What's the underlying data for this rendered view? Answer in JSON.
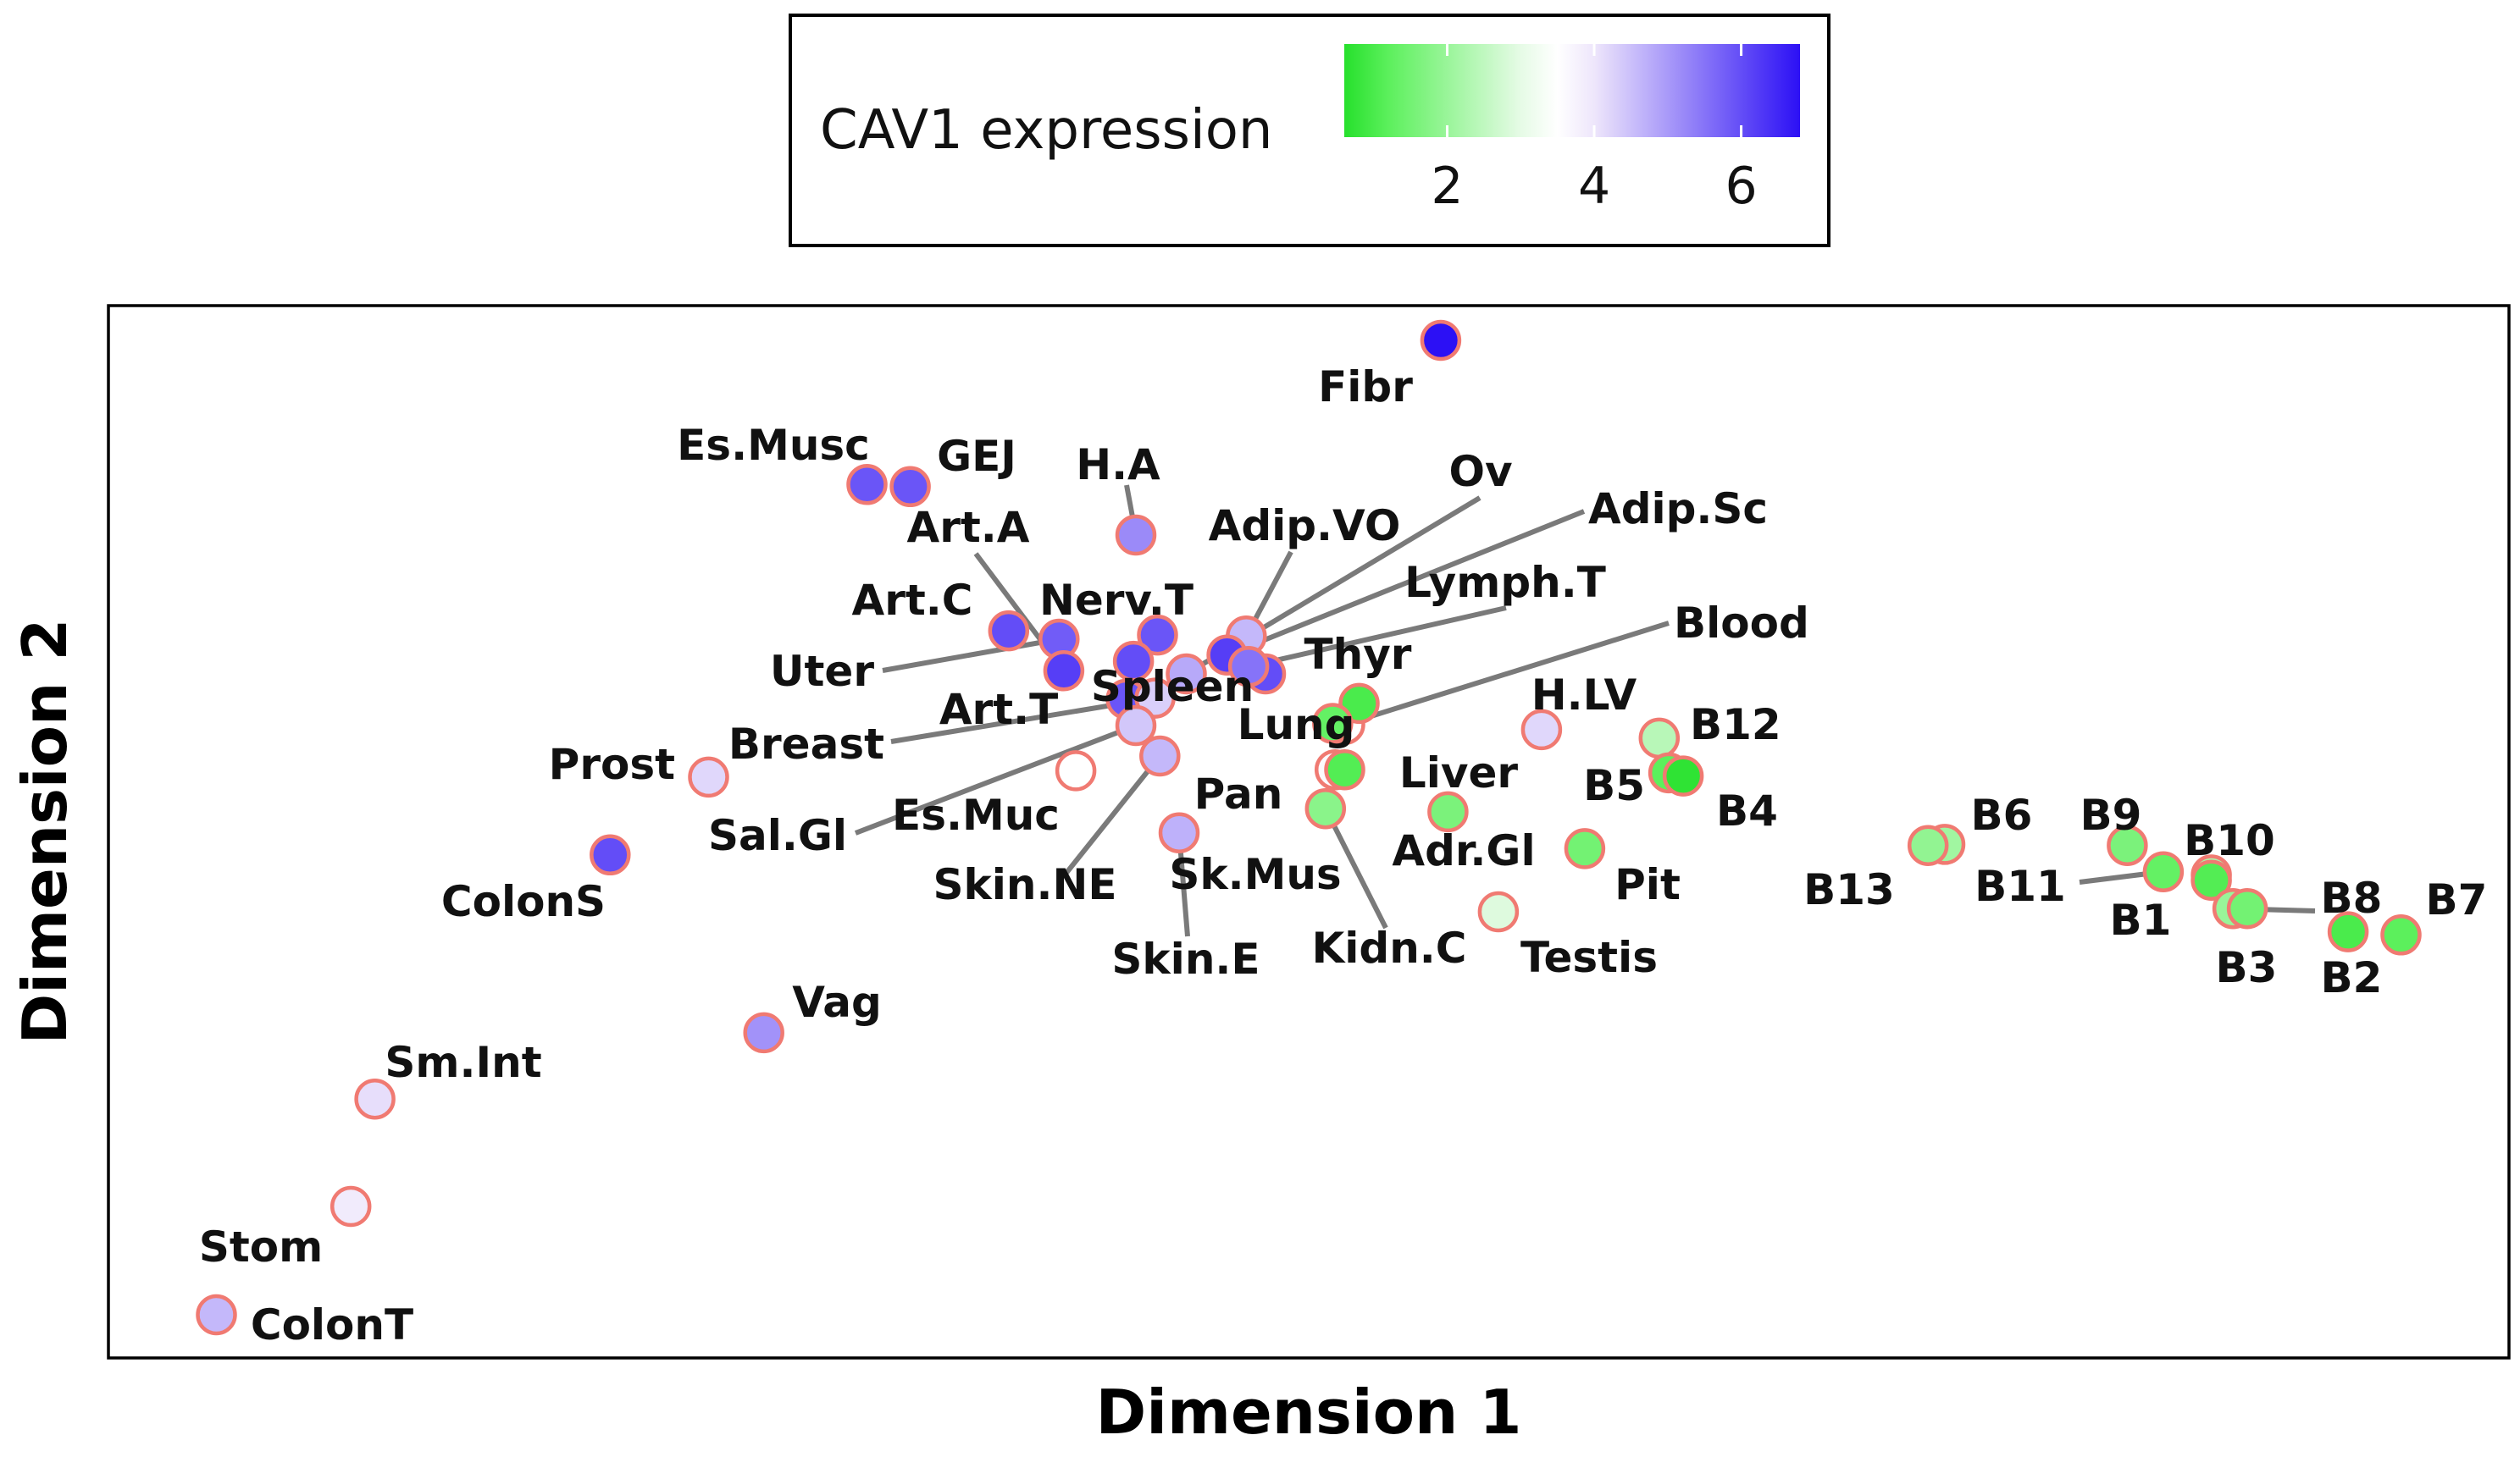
{
  "chart_data": {
    "type": "scatter",
    "title": "",
    "xlabel": "Dimension 1",
    "ylabel": "Dimension 2",
    "xlim": [
      0,
      100
    ],
    "ylim": [
      0,
      100
    ],
    "grid": false,
    "color_variable": "CAV1 expression",
    "color_scale": {
      "min": 0.6,
      "max": 6.8,
      "stops": [
        {
          "value": 0.6,
          "color": "#26e02c"
        },
        {
          "value": 1.2,
          "color": "#5cf05c"
        },
        {
          "value": 3.0,
          "color": "#e6fbe6"
        },
        {
          "value": 3.5,
          "color": "#ffffff"
        },
        {
          "value": 4.0,
          "color": "#eee6fb"
        },
        {
          "value": 6.8,
          "color": "#2c10f5"
        }
      ],
      "ticks": [
        2,
        4,
        6
      ]
    },
    "points": [
      {
        "name": "Fibr",
        "x": 55.5,
        "y": 96.7,
        "value": 6.8
      },
      {
        "name": "Es.Musc",
        "x": 31.6,
        "y": 83.0,
        "value": 5.9
      },
      {
        "name": "GEJ",
        "x": 33.4,
        "y": 82.8,
        "value": 5.9
      },
      {
        "name": "H.A",
        "x": 42.8,
        "y": 78.2,
        "value": 5.2
      },
      {
        "name": "Art.C",
        "x": 37.5,
        "y": 69.1,
        "value": 6.0
      },
      {
        "name": "Uter",
        "x": 39.6,
        "y": 68.3,
        "value": 5.8
      },
      {
        "name": "Art.A",
        "x": 39.8,
        "y": 65.3,
        "value": 6.2
      },
      {
        "name": "Nerv.T",
        "x": 43.7,
        "y": 68.7,
        "value": 5.9
      },
      {
        "name": "Art.T",
        "x": 42.7,
        "y": 66.2,
        "value": 6.0
      },
      {
        "name": "Spleen",
        "x": 42.4,
        "y": 62.6,
        "value": 5.9
      },
      {
        "name": "Breast",
        "x": 43.6,
        "y": 62.7,
        "value": 4.3
      },
      {
        "name": "Adip.VO",
        "x": 47.4,
        "y": 68.6,
        "value": 4.6
      },
      {
        "name": "Adip.Sc",
        "x": 46.6,
        "y": 66.8,
        "value": 6.2
      },
      {
        "name": "Ov",
        "x": 44.9,
        "y": 65.0,
        "value": 4.8
      },
      {
        "name": "Thyr",
        "x": 48.2,
        "y": 65.0,
        "value": 6.0
      },
      {
        "name": "Lymph.T",
        "x": 47.5,
        "y": 65.7,
        "value": 5.5
      },
      {
        "name": "Blood",
        "x": 51.5,
        "y": 60.2,
        "value": 3.5
      },
      {
        "name": "Lung",
        "x": 52.1,
        "y": 62.2,
        "value": 1.0
      },
      {
        "name": "H.LV",
        "x": 59.7,
        "y": 59.7,
        "value": 4.2
      },
      {
        "name": "B12",
        "x": 64.6,
        "y": 58.9,
        "value": 2.4
      },
      {
        "name": "B5",
        "x": 65.0,
        "y": 55.6,
        "value": 1.2
      },
      {
        "name": "B4",
        "x": 65.6,
        "y": 55.3,
        "value": 0.7
      },
      {
        "name": "Prost",
        "x": 25.0,
        "y": 55.2,
        "value": 4.2
      },
      {
        "name": "Es.Muc",
        "x": 40.3,
        "y": 55.8,
        "value": 3.5
      },
      {
        "name": "Skin.NE",
        "x": 43.8,
        "y": 57.2,
        "value": 4.6
      },
      {
        "name": "Pan",
        "x": 51.1,
        "y": 55.9,
        "value": 3.6
      },
      {
        "name": "Sk.Mus",
        "x": 51.5,
        "y": 55.9,
        "value": 1.1
      },
      {
        "name": "Liver",
        "x": 51.0,
        "y": 60.3,
        "value": 1.3
      },
      {
        "name": "Kidn.C",
        "x": 50.7,
        "y": 52.2,
        "value": 1.8
      },
      {
        "name": "Adr.Gl",
        "x": 55.8,
        "y": 51.9,
        "value": 1.6
      },
      {
        "name": "Pit",
        "x": 61.5,
        "y": 48.4,
        "value": 1.5
      },
      {
        "name": "Testis",
        "x": 57.9,
        "y": 42.4,
        "value": 2.9
      },
      {
        "name": "Skin.E",
        "x": 44.6,
        "y": 49.9,
        "value": 4.7
      },
      {
        "name": "Sal.Gl",
        "x": 42.8,
        "y": 60.1,
        "value": 4.4
      },
      {
        "name": "ColonS",
        "x": 20.9,
        "y": 47.8,
        "value": 6.0
      },
      {
        "name": "Vag",
        "x": 27.3,
        "y": 30.9,
        "value": 5.1
      },
      {
        "name": "Sm.Int",
        "x": 11.1,
        "y": 24.6,
        "value": 4.1
      },
      {
        "name": "Stom",
        "x": 10.1,
        "y": 14.4,
        "value": 3.9
      },
      {
        "name": "ColonT",
        "x": 4.5,
        "y": 4.1,
        "value": 4.6
      },
      {
        "name": "B6",
        "x": 76.5,
        "y": 48.8,
        "value": 2.1
      },
      {
        "name": "B13",
        "x": 75.8,
        "y": 48.7,
        "value": 1.9
      },
      {
        "name": "B9",
        "x": 84.1,
        "y": 48.7,
        "value": 1.6
      },
      {
        "name": "B10",
        "x": 87.6,
        "y": 45.9,
        "value": 2.2
      },
      {
        "name": "B11",
        "x": 85.6,
        "y": 46.2,
        "value": 1.3
      },
      {
        "name": "B1",
        "x": 87.6,
        "y": 45.4,
        "value": 1.1
      },
      {
        "name": "B8",
        "x": 88.5,
        "y": 42.7,
        "value": 2.0
      },
      {
        "name": "B3",
        "x": 89.1,
        "y": 42.7,
        "value": 1.5
      },
      {
        "name": "B2",
        "x": 93.3,
        "y": 40.5,
        "value": 1.0
      },
      {
        "name": "B7",
        "x": 95.5,
        "y": 40.2,
        "value": 1.2
      }
    ]
  }
}
